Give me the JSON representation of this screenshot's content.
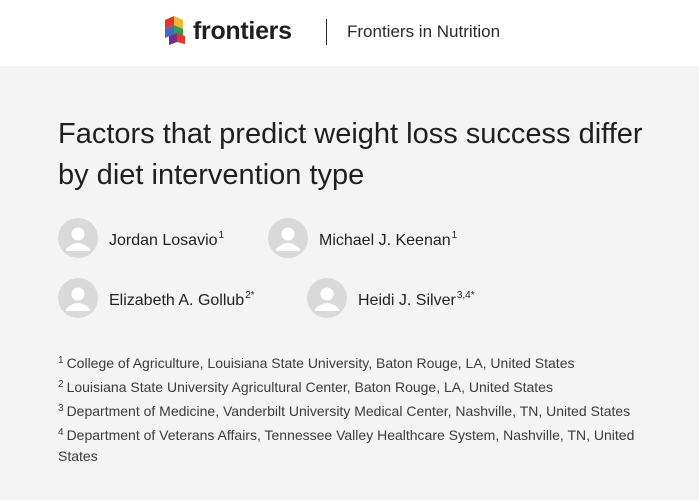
{
  "header": {
    "logo_text": "frontiers",
    "journal_name": "Frontiers in Nutrition",
    "logo_colors": [
      "#e6352b",
      "#f2b82f",
      "#2f9e4f",
      "#3d6dbf",
      "#7a2a8b"
    ]
  },
  "article": {
    "title": "Factors that predict weight loss success differ by diet intervention type",
    "authors": [
      {
        "name": "Jordan Losavio",
        "sup": "1",
        "icon": "user-avatar-icon"
      },
      {
        "name": "Michael J. Keenan",
        "sup": "1",
        "icon": "user-avatar-icon"
      },
      {
        "name": "Elizabeth A. Gollub",
        "sup": "2*",
        "icon": "user-avatar-icon"
      },
      {
        "name": "Heidi J. Silver",
        "sup": "3,4*",
        "icon": "user-avatar-icon"
      }
    ],
    "affiliations": [
      {
        "num": "1",
        "text": "College of Agriculture, Louisiana State University, Baton Rouge, LA, United States"
      },
      {
        "num": "2",
        "text": "Louisiana State University Agricultural Center, Baton Rouge, LA, United States"
      },
      {
        "num": "3",
        "text": "Department of Medicine, Vanderbilt University Medical Center, Nashville, TN, United States"
      },
      {
        "num": "4",
        "text": "Department of Veterans Affairs, Tennessee Valley Healthcare System, Nashville, TN, United States"
      }
    ]
  }
}
